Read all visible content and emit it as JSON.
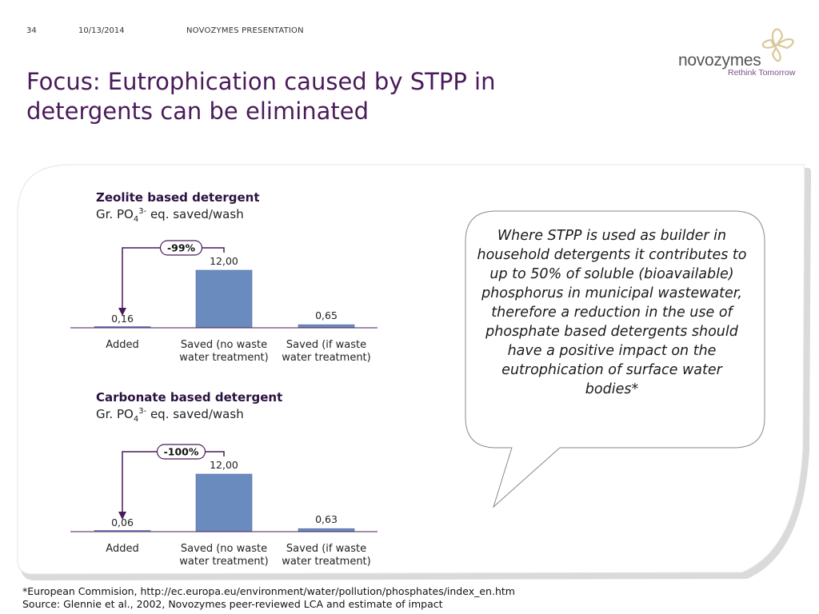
{
  "header": {
    "slide_number": "34",
    "date": "10/13/2014",
    "label": "NOVOZYMES PRESENTATION"
  },
  "title": {
    "line1": "Focus: Eutrophication caused by STPP in",
    "line2": "detergents can be eliminated"
  },
  "logo": {
    "word": "novozymes",
    "tagline": "Rethink Tomorrow"
  },
  "colors": {
    "title": "#4a1a5a",
    "bar": "#6a8bbd",
    "arrow": "#4a1a5a",
    "panel_shadow": "#c8c8c8"
  },
  "chart_data": [
    {
      "type": "bar",
      "title": "Zeolite based detergent",
      "subtitle_prefix": "Gr. PO",
      "subtitle_sub": "4",
      "subtitle_sup": "3-",
      "subtitle_suffix": " eq. saved/wash",
      "categories": [
        "Added",
        "Saved (no waste water treatment)",
        "Saved (if waste water treatment)"
      ],
      "category_lines": [
        [
          "Added"
        ],
        [
          "Saved (no waste",
          "water treatment)"
        ],
        [
          "Saved (if waste",
          "water treatment)"
        ]
      ],
      "values": [
        0.16,
        12.0,
        0.65
      ],
      "value_labels": [
        "0,16",
        "12,00",
        "0,65"
      ],
      "annotation": "-99%",
      "ylim": [
        0,
        12
      ]
    },
    {
      "type": "bar",
      "title": "Carbonate based detergent",
      "subtitle_prefix": "Gr. PO",
      "subtitle_sub": "4",
      "subtitle_sup": "3-",
      "subtitle_suffix": " eq. saved/wash",
      "categories": [
        "Added",
        "Saved (no waste water treatment)",
        "Saved (if waste water treatment)"
      ],
      "category_lines": [
        [
          "Added"
        ],
        [
          "Saved (no waste",
          "water treatment)"
        ],
        [
          "Saved (if waste",
          "water treatment)"
        ]
      ],
      "values": [
        0.06,
        12.0,
        0.63
      ],
      "value_labels": [
        "0,06",
        "12,00",
        "0,63"
      ],
      "annotation": "-100%",
      "ylim": [
        0,
        12
      ]
    }
  ],
  "callout": {
    "text": "Where STPP is used as builder in household detergents it contributes to up to 50% of soluble (bioavailable) phosphorus in municipal wastewater, therefore a reduction in the use of phosphate based detergents should have a positive impact on the eutrophication of surface water bodies*"
  },
  "footnotes": {
    "reference": "*European Commision, http://ec.europa.eu/environment/water/pollution/phosphates/index_en.htm",
    "source": "Source: Glennie et al., 2002, Novozymes peer-reviewed LCA and estimate of impact"
  }
}
